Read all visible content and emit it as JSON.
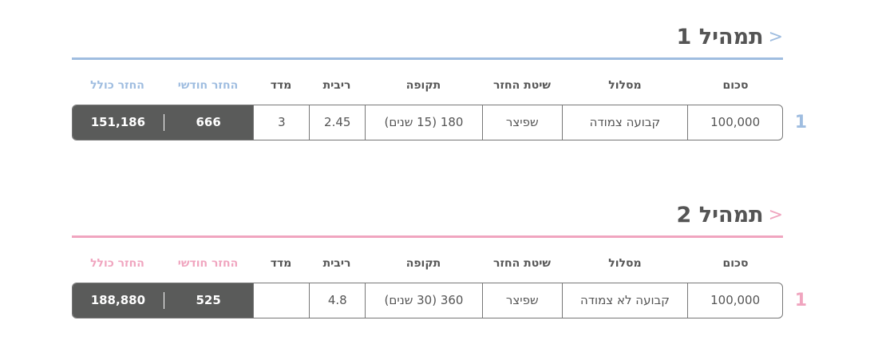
{
  "colors": {
    "plan1": "#9fbde0",
    "plan2": "#f0a5bf",
    "dark_cell": "#5a5b5a"
  },
  "headers": [
    "סכום",
    "מסלול",
    "שיטת החזר",
    "תקופה",
    "ריבית",
    "מדד",
    "החזר חודשי",
    "החזר כולל"
  ],
  "plans": [
    {
      "title": "תמהיל 1",
      "icon": "chevron-left-icon",
      "row_number": "1",
      "row": [
        "100,000",
        "קבועה צמודה",
        "שפיצר",
        "180 (15 שנים)",
        "2.45",
        "3",
        "666",
        "151,186"
      ]
    },
    {
      "title": "תמהיל 2",
      "icon": "chevron-left-icon",
      "row_number": "1",
      "row": [
        "100,000",
        "קבועה לא צמודה",
        "שפיצר",
        "360 (30 שנים)",
        "4.8",
        "",
        "525",
        "188,880"
      ]
    }
  ]
}
